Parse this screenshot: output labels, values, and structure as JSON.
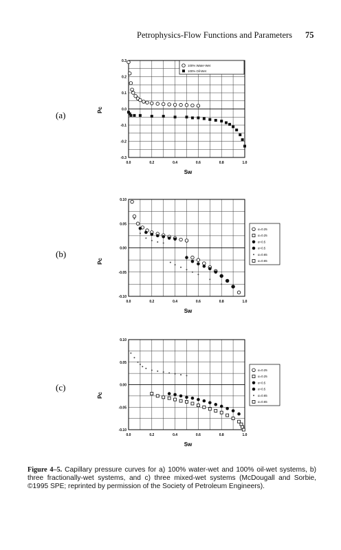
{
  "header": {
    "title": "Petrophysics-Flow Functions and Parameters",
    "page": "75"
  },
  "caption": {
    "label": "Figure 4–5.",
    "text": "Capillary pressure curves for a) 100% water-wet and 100% oil-wet systems, b) three fractionally-wet systems, and c) three mixed-wet systems (McDougall and Sorbie, ©1995 SPE; reprinted by permission of the Society of Petroleum Engineers)."
  },
  "chart_data": [
    {
      "panel": "(a)",
      "type": "scatter",
      "xlabel": "Sw",
      "ylabel": "Pc",
      "xlim": [
        0,
        1
      ],
      "ylim": [
        -0.3,
        0.3
      ],
      "xticks": [
        "0.0",
        "0.2",
        "0.4",
        "0.6",
        "0.8",
        "1.0"
      ],
      "yticks": [
        "0.3",
        "0.2",
        "0.1",
        "0.0",
        "-0.1",
        "-0.2",
        "-0.3"
      ],
      "legend": {
        "placement": "top-right",
        "entries": [
          "100% Water-Wet",
          "100% Oil-Wet"
        ]
      },
      "grid": true,
      "series": [
        {
          "name": "100% Water-Wet",
          "marker": "open-circle",
          "x": [
            0.0,
            0.01,
            0.02,
            0.03,
            0.04,
            0.06,
            0.08,
            0.1,
            0.13,
            0.16,
            0.2,
            0.25,
            0.3,
            0.35,
            0.4,
            0.45,
            0.5,
            0.55,
            0.6
          ],
          "y": [
            0.29,
            0.22,
            0.16,
            0.12,
            0.1,
            0.08,
            0.065,
            0.055,
            0.045,
            0.04,
            0.035,
            0.032,
            0.03,
            0.028,
            0.026,
            0.025,
            0.024,
            0.022,
            0.02
          ]
        },
        {
          "name": "100% Oil-Wet",
          "marker": "filled-square",
          "x": [
            0.0,
            0.01,
            0.02,
            0.05,
            0.1,
            0.2,
            0.3,
            0.4,
            0.5,
            0.55,
            0.6,
            0.65,
            0.7,
            0.75,
            0.8,
            0.84,
            0.87,
            0.9,
            0.93,
            0.96,
            0.98,
            1.0
          ],
          "y": [
            -0.02,
            -0.03,
            -0.04,
            -0.04,
            -0.04,
            -0.045,
            -0.045,
            -0.05,
            -0.05,
            -0.055,
            -0.055,
            -0.06,
            -0.065,
            -0.07,
            -0.075,
            -0.085,
            -0.095,
            -0.11,
            -0.13,
            -0.16,
            -0.19,
            -0.23
          ]
        }
      ]
    },
    {
      "panel": "(b)",
      "type": "scatter",
      "xlabel": "Sw",
      "ylabel": "Pc",
      "xlim": [
        0,
        1
      ],
      "ylim": [
        -0.1,
        0.1
      ],
      "xticks": [
        "0.0",
        "0.2",
        "0.4",
        "0.6",
        "0.8",
        "1.0"
      ],
      "yticks": [
        "0.10",
        "0.05",
        "0.00",
        "-0.05",
        "-0.10"
      ],
      "legend": {
        "placement": "right-outside",
        "entries": [
          "α=0.25",
          "α=0.25",
          "α=0.5",
          "α=0.5",
          "α=0.65",
          "α=0.65"
        ]
      },
      "grid": true,
      "series": [
        {
          "name": "α=0.25",
          "marker": "open-circle",
          "x": [
            0.03,
            0.05,
            0.08,
            0.12,
            0.16,
            0.2,
            0.25,
            0.3,
            0.35,
            0.4,
            0.45,
            0.5,
            0.55,
            0.6,
            0.65,
            0.7,
            0.75,
            0.8,
            0.85,
            0.9,
            0.95
          ],
          "y": [
            0.095,
            0.065,
            0.05,
            0.042,
            0.036,
            0.032,
            0.029,
            0.026,
            0.023,
            0.02,
            0.017,
            0.015,
            -0.02,
            -0.025,
            -0.032,
            -0.04,
            -0.048,
            -0.058,
            -0.068,
            -0.08,
            -0.092
          ]
        },
        {
          "name": "α=0.5",
          "marker": "filled-circle",
          "x": [
            0.1,
            0.15,
            0.2,
            0.25,
            0.3,
            0.35,
            0.4,
            0.5,
            0.55,
            0.6,
            0.65,
            0.7,
            0.75,
            0.8,
            0.85,
            0.9
          ],
          "y": [
            0.04,
            0.032,
            0.028,
            0.025,
            0.023,
            0.02,
            0.018,
            -0.02,
            -0.028,
            -0.033,
            -0.038,
            -0.043,
            -0.05,
            -0.058,
            -0.068,
            -0.08
          ]
        },
        {
          "name": "α=0.65",
          "marker": "dots",
          "x": [
            0.05,
            0.1,
            0.15,
            0.2,
            0.25,
            0.3,
            0.36,
            0.4,
            0.45,
            0.5,
            0.55,
            0.6,
            0.7,
            0.8
          ],
          "y": [
            0.06,
            0.03,
            0.02,
            0.015,
            0.012,
            0.01,
            -0.03,
            -0.035,
            -0.04,
            -0.045,
            -0.05,
            -0.055,
            -0.065,
            -0.075
          ]
        }
      ]
    },
    {
      "panel": "(c)",
      "type": "scatter",
      "xlabel": "Sw",
      "ylabel": "Pc",
      "xlim": [
        0,
        1
      ],
      "ylim": [
        -0.1,
        0.1
      ],
      "xticks": [
        "0.0",
        "0.2",
        "0.4",
        "0.6",
        "0.8",
        "1.0"
      ],
      "yticks": [
        "0.10",
        "0.05",
        "0.00",
        "-0.05",
        "-0.10"
      ],
      "legend": {
        "placement": "right-outside",
        "entries": [
          "α=0.25",
          "α=0.25",
          "α=0.5",
          "α=0.5",
          "α=0.65",
          "α=0.65"
        ]
      },
      "grid": true,
      "series": [
        {
          "name": "α=0.25",
          "marker": "open-square",
          "x": [
            0.2,
            0.25,
            0.3,
            0.35,
            0.4,
            0.45,
            0.5,
            0.55,
            0.6,
            0.65,
            0.7,
            0.75,
            0.8,
            0.85,
            0.9,
            0.95,
            0.97,
            0.98,
            0.99
          ],
          "y": [
            -0.02,
            -0.025,
            -0.028,
            -0.03,
            -0.033,
            -0.036,
            -0.038,
            -0.042,
            -0.046,
            -0.05,
            -0.054,
            -0.058,
            -0.062,
            -0.068,
            -0.075,
            -0.082,
            -0.088,
            -0.094,
            -0.1
          ]
        },
        {
          "name": "α=0.5",
          "marker": "filled-circle",
          "x": [
            0.35,
            0.4,
            0.45,
            0.5,
            0.55,
            0.6,
            0.65,
            0.7,
            0.75,
            0.8,
            0.85,
            0.9,
            0.95
          ],
          "y": [
            -0.02,
            -0.022,
            -0.025,
            -0.028,
            -0.03,
            -0.033,
            -0.036,
            -0.04,
            -0.044,
            -0.048,
            -0.053,
            -0.058,
            -0.065
          ]
        },
        {
          "name": "α=0.65",
          "marker": "dots",
          "x": [
            0.02,
            0.05,
            0.08,
            0.1,
            0.12,
            0.15,
            0.2,
            0.25,
            0.3,
            0.35,
            0.4,
            0.45,
            0.5
          ],
          "y": [
            0.07,
            0.06,
            0.05,
            0.045,
            0.04,
            0.036,
            0.032,
            0.03,
            0.028,
            0.026,
            0.024,
            0.022,
            0.02
          ]
        }
      ]
    }
  ]
}
